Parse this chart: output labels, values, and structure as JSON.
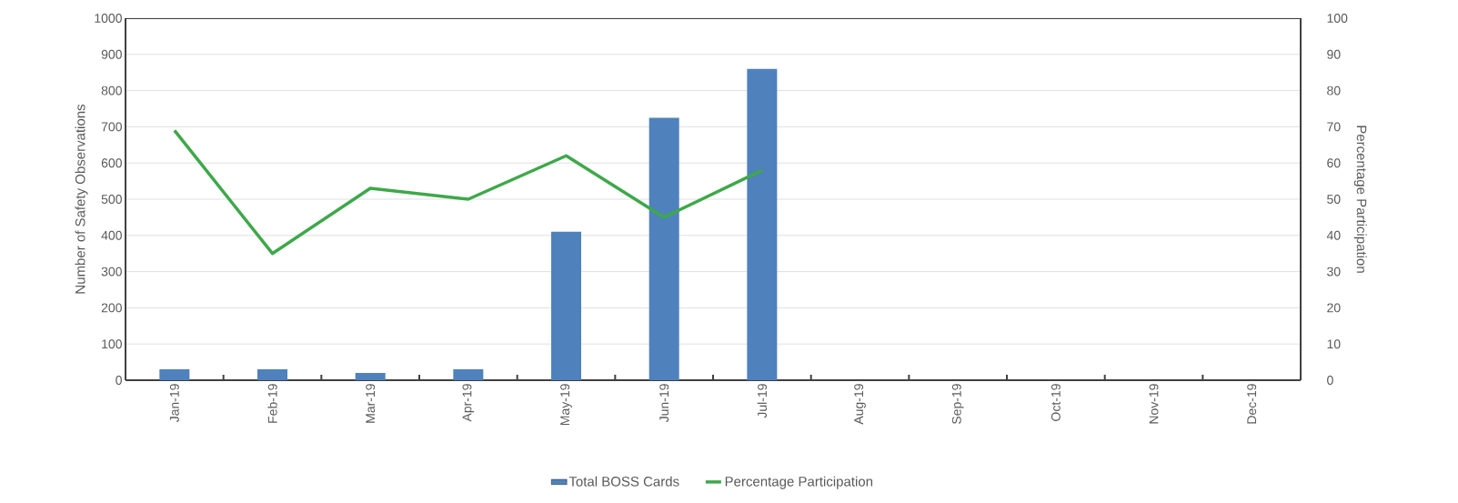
{
  "chart_data": {
    "type": "bar",
    "categories": [
      "Jan-19",
      "Feb-19",
      "Mar-19",
      "Apr-19",
      "May-19",
      "Jun-19",
      "Jul-19",
      "Aug-19",
      "Sep-19",
      "Oct-19",
      "Nov-19",
      "Dec-19"
    ],
    "series": [
      {
        "name": "Total BOSS Cards",
        "color": "#4f81bd",
        "values": [
          30,
          30,
          20,
          30,
          410,
          725,
          860,
          null,
          null,
          null,
          null,
          null
        ]
      },
      {
        "name": "Percentage Participation",
        "type": "line",
        "axis": "y2",
        "color": "#3ea84a",
        "values": [
          69,
          35,
          53,
          50,
          62,
          45,
          58,
          null,
          null,
          null,
          null,
          null
        ]
      }
    ],
    "ylabel": "Number of Safety Observations",
    "y2label": "Percentage Participation",
    "ylim": [
      0,
      1000
    ],
    "yticks": [
      0,
      100,
      200,
      300,
      400,
      500,
      600,
      700,
      800,
      900,
      1000
    ],
    "y2lim": [
      0,
      100
    ],
    "y2ticks": [
      0,
      10,
      20,
      30,
      40,
      50,
      60,
      70,
      80,
      90,
      100
    ],
    "grid": "y",
    "legend": "bottom"
  }
}
